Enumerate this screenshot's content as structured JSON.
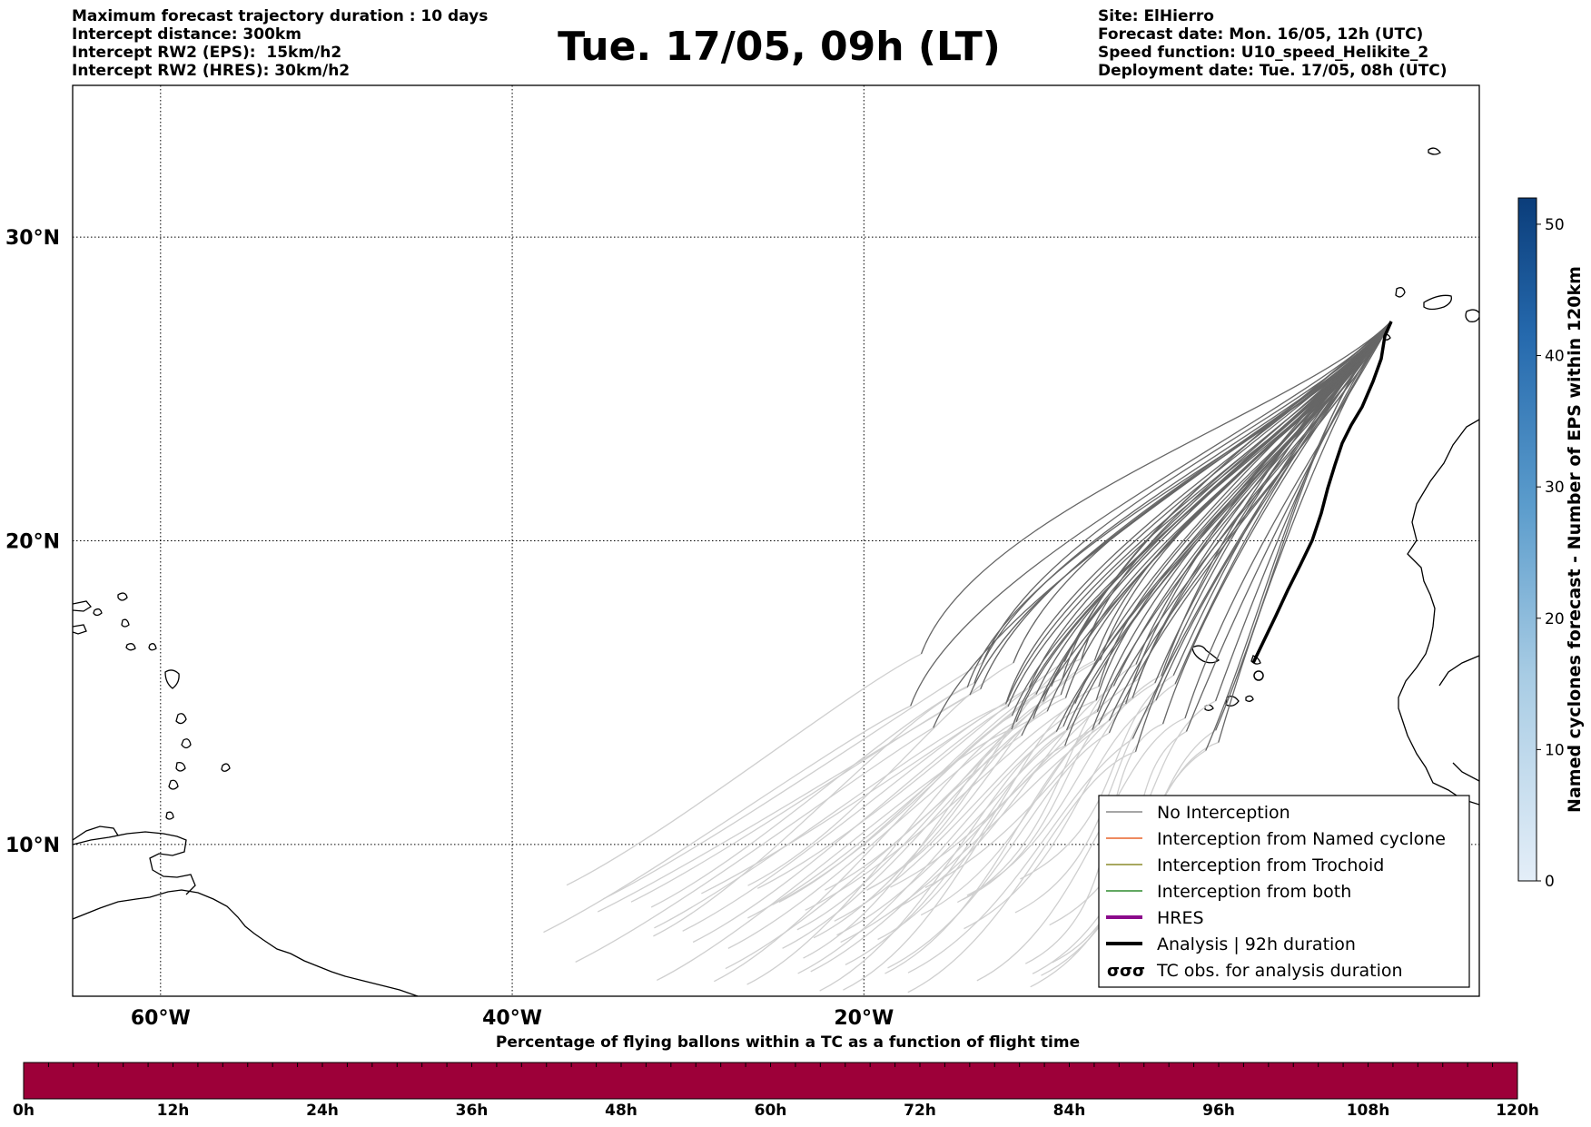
{
  "header": {
    "left": [
      "Maximum forecast trajectory duration : 10 days",
      "Intercept distance: 300km",
      "Intercept RW2 (EPS):  15km/h2",
      "Intercept RW2 (HRES): 30km/h2"
    ],
    "title": "Tue. 17/05, 09h (LT)",
    "right": [
      "Site: ElHierro",
      "Forecast date: Mon. 16/05, 12h (UTC)",
      "Speed function: U10_speed_Helikite_2",
      "Deployment date: Tue. 17/05, 08h (UTC)"
    ]
  },
  "map": {
    "lon_range": [
      -65,
      15
    ],
    "lat_range": [
      5,
      35
    ],
    "lon_ticks": [
      {
        "value": -60,
        "label": "60°W"
      },
      {
        "value": -40,
        "label": "40°W"
      },
      {
        "value": -20,
        "label": "20°W"
      }
    ],
    "lat_ticks": [
      {
        "value": 30,
        "label": "30°N"
      },
      {
        "value": 20,
        "label": "20°N"
      },
      {
        "value": 10,
        "label": "10°N"
      }
    ],
    "site": {
      "name": "ElHierro",
      "lon": -18.0,
      "lat": 27.7
    }
  },
  "legend": {
    "items": [
      {
        "label": "No Interception",
        "color": "#888888",
        "style": "thin"
      },
      {
        "label": "Interception from Named cyclone",
        "color": "#e8642a",
        "style": "thin"
      },
      {
        "label": "Interception from Trochoid",
        "color": "#8c8c2c",
        "style": "thin"
      },
      {
        "label": "Interception from both",
        "color": "#2e8b2e",
        "style": "thin"
      },
      {
        "label": "HRES",
        "color": "#8b0a8b",
        "style": "thick"
      },
      {
        "label": "Analysis | 92h duration",
        "color": "#000000",
        "style": "thick"
      },
      {
        "label": "TC obs. for analysis duration",
        "color": "#000000",
        "style": "symbol",
        "symbol": "σσσ"
      }
    ]
  },
  "colorbar": {
    "label": "Named cyclones forecast - Number of EPS within 120km",
    "ticks": [
      "0",
      "10",
      "20",
      "30",
      "40",
      "50"
    ],
    "min": 0,
    "max": 52,
    "color_low": "#e4eef8",
    "color_high": "#0b3d7a"
  },
  "timebar": {
    "title": "Percentage of flying ballons within a TC as a function of flight time",
    "ticks": [
      "0h",
      "12h",
      "24h",
      "36h",
      "48h",
      "60h",
      "72h",
      "84h",
      "96h",
      "108h",
      "120h"
    ],
    "fill_color": "#9d0039"
  },
  "colors": {
    "trajectory_dark": "#666666",
    "trajectory_light": "#cfcfcf",
    "analysis": "#000000"
  }
}
